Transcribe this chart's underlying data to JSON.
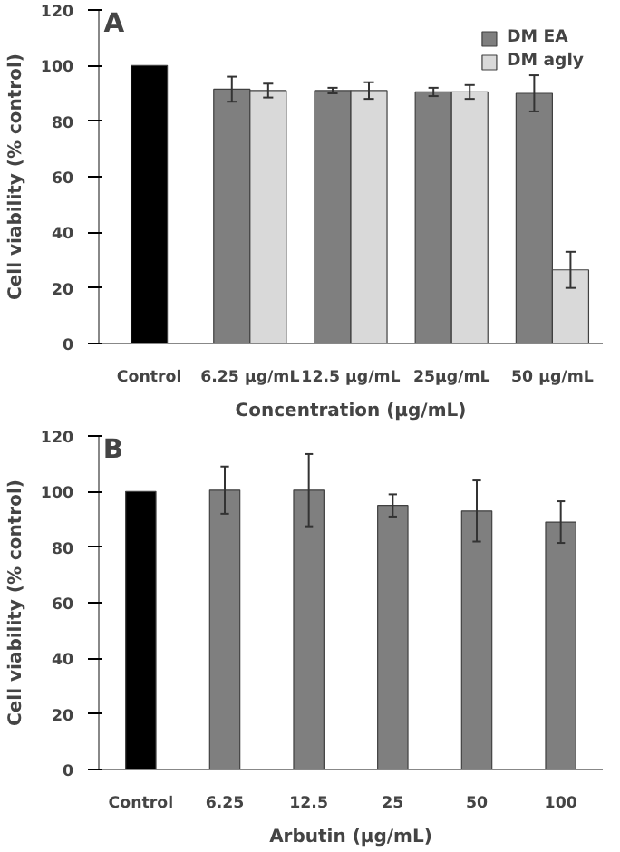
{
  "chart_data": [
    {
      "type": "bar",
      "annotations": [
        "A"
      ],
      "xlabel": "Concentration (µg/mL)",
      "ylabel": "Cell viability (% control)",
      "categories": [
        "Control",
        "6.25 µg/mL",
        "12.5 µg/mL",
        "25µg/mL",
        "50 µg/mL"
      ],
      "ylim": [
        0,
        120
      ],
      "yticks": [
        0,
        20,
        40,
        60,
        80,
        100,
        120
      ],
      "grid": false,
      "legend": "top right",
      "series": [
        {
          "color": "#000000",
          "values": [
            100,
            null,
            null,
            null,
            null
          ]
        },
        {
          "name": "DM EA",
          "color": "#7f7f7f",
          "values": [
            null,
            91.5,
            91,
            90.5,
            90
          ],
          "errors": [
            null,
            4.5,
            1,
            1.5,
            6.5
          ]
        },
        {
          "name": "DM agly",
          "color": "#d9d9d9",
          "values": [
            null,
            91,
            91,
            90.5,
            26.5
          ],
          "errors": [
            null,
            2.5,
            3,
            2.5,
            6.5
          ]
        }
      ]
    },
    {
      "type": "bar",
      "annotations": [
        "B"
      ],
      "xlabel": "Arbutin (µg/mL)",
      "ylabel": "Cell viability (% control)",
      "categories": [
        "Control",
        "6.25",
        "12.5",
        "25",
        "50",
        "100"
      ],
      "ylim": [
        0,
        120
      ],
      "yticks": [
        0,
        20,
        40,
        60,
        80,
        100,
        120
      ],
      "grid": false,
      "series": [
        {
          "color": "#000000",
          "values": [
            100,
            null,
            null,
            null,
            null,
            null
          ]
        },
        {
          "color": "#7f7f7f",
          "values": [
            null,
            100.5,
            100.5,
            95,
            93,
            89
          ],
          "errors": [
            null,
            8.5,
            13,
            4,
            11,
            7.5
          ]
        }
      ]
    }
  ]
}
